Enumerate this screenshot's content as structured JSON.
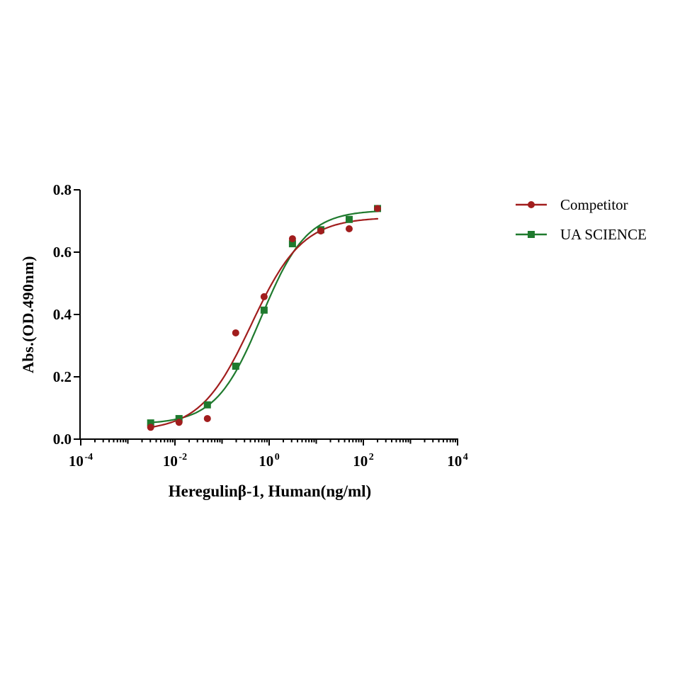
{
  "page": {
    "background": "#ffffff"
  },
  "chart_data": {
    "type": "scatter",
    "title": "",
    "xlabel": "Heregulinβ-1, Human(ng/ml)",
    "ylabel": "Abs.(OD.490nm)",
    "x_scale": "log10",
    "grid": false,
    "axis_color": "#000000",
    "text_color": "#000000",
    "x_axis": {
      "min_exponent": -4,
      "max_exponent": 4,
      "major_tick_exponents": [
        -4,
        -2,
        0,
        2,
        4
      ],
      "base_label": "10"
    },
    "y_axis": {
      "min": 0,
      "max": 0.8,
      "tick_values": [
        0,
        0.2,
        0.4,
        0.6,
        0.8
      ],
      "tick_labels": [
        "0.0",
        "0.2",
        "0.4",
        "0.6",
        "0.8"
      ]
    },
    "x": [
      0.00305,
      0.0122,
      0.0488,
      0.195,
      0.781,
      3.125,
      12.5,
      50,
      200
    ],
    "series": [
      {
        "name": "Competitor",
        "marker": "circle",
        "color": "#A11D1D",
        "values": [
          0.038,
          0.054,
          0.066,
          0.341,
          0.457,
          0.643,
          0.668,
          0.675,
          0.74
        ],
        "fit_4pl": {
          "bottom": 0.025,
          "top": 0.712,
          "ec50": 0.42,
          "hill": 0.8
        }
      },
      {
        "name": "UA SCIENCE",
        "marker": "square",
        "color": "#1F7A2E",
        "values": [
          0.052,
          0.066,
          0.11,
          0.234,
          0.414,
          0.627,
          0.672,
          0.705,
          0.74
        ],
        "fit_4pl": {
          "bottom": 0.048,
          "top": 0.735,
          "ec50": 0.68,
          "hill": 0.9
        }
      }
    ],
    "legend": {
      "position": "right",
      "entries": [
        "Competitor",
        "UA SCIENCE"
      ]
    }
  }
}
